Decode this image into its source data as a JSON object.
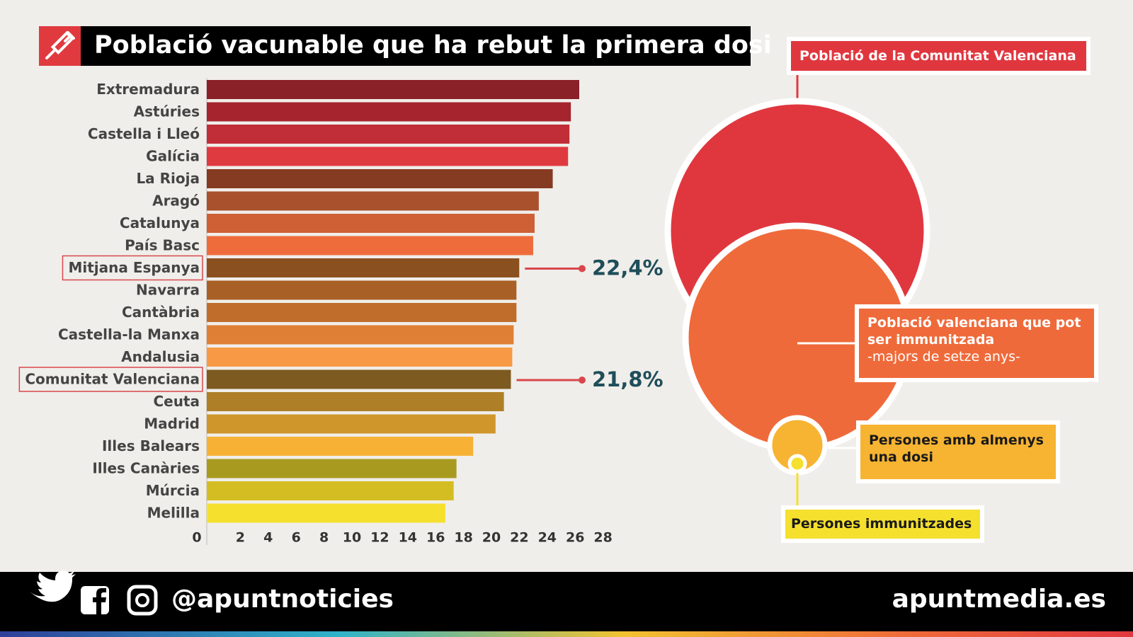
{
  "chart_data": {
    "type": "hbar",
    "title": "Població vacunable que ha rebut la primera dosi",
    "categories": [
      "Extremadura",
      "Astúries",
      "Castella i Lleó",
      "Galícia",
      "La Rioja",
      "Aragó",
      "Catalunya",
      "País Basc",
      "Mitjana Espanya",
      "Navarra",
      "Cantàbria",
      "Castella-la Manxa",
      "Andalusia",
      "Comunitat Valenciana",
      "Ceuta",
      "Madrid",
      "Illes Balears",
      "Illes Canàries",
      "Múrcia",
      "Melilla"
    ],
    "values": [
      26.7,
      26.1,
      26.0,
      25.9,
      24.8,
      23.8,
      23.5,
      23.4,
      22.4,
      22.2,
      22.2,
      22.0,
      21.9,
      21.8,
      21.3,
      20.7,
      19.1,
      17.9,
      17.7,
      17.1
    ],
    "value_labels": [
      null,
      null,
      null,
      null,
      null,
      null,
      null,
      null,
      "22,4%",
      null,
      null,
      null,
      null,
      "21,8%",
      null,
      null,
      null,
      null,
      null,
      null
    ],
    "colors": [
      "#8a2028",
      "#a5242d",
      "#c12e37",
      "#df3a40",
      "#853a22",
      "#a9502c",
      "#cf5f35",
      "#ee6c3b",
      "#8b5020",
      "#a96026",
      "#c06d2c",
      "#df7f35",
      "#f89a45",
      "#7d5a1f",
      "#ae7f26",
      "#cf962c",
      "#f7b236",
      "#a89a1f",
      "#d4bd22",
      "#f5e02e"
    ],
    "xlim": [
      0,
      28
    ],
    "xticks": [
      0,
      2,
      4,
      6,
      8,
      10,
      12,
      14,
      16,
      18,
      20,
      22,
      24,
      26,
      28
    ],
    "grid": false
  },
  "diagram": {
    "total": "Població de la Comunitat Valenciana",
    "eligible": "Població valenciana que pot ser immunitzada",
    "eligible_note": "-majors de setze anys-",
    "one_dose": "Persones amb almenys una dosi",
    "immunized": "Persones immunitzades"
  },
  "footer": {
    "handle": "@apuntnoticies",
    "site": "apuntmedia.es"
  }
}
